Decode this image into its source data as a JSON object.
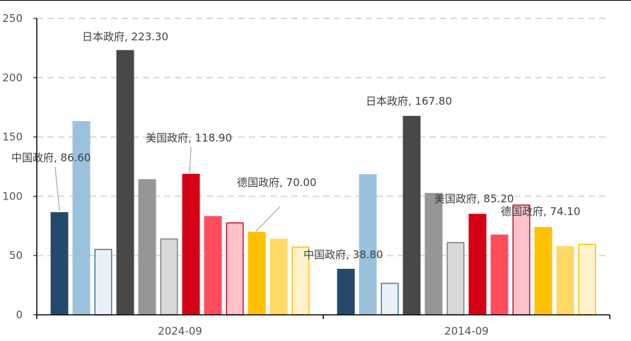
{
  "chart_data": {
    "type": "bar",
    "categories": [
      "2024-09",
      "2014-09"
    ],
    "series": [
      {
        "values": [
          86.6,
          38.8
        ],
        "color": "#234a6a"
      },
      {
        "values": [
          163.4,
          118.6
        ],
        "color": "#9bc1de"
      },
      {
        "values": [
          55.6,
          27.0
        ],
        "color": "#eaf1f8",
        "stroke": "#3f7aa6"
      },
      {
        "values": [
          223.3,
          167.8
        ],
        "color": "#484848"
      },
      {
        "values": [
          114.4,
          102.8
        ],
        "color": "#969696"
      },
      {
        "values": [
          64.4,
          61.4
        ],
        "color": "#d9d9d9",
        "stroke": "#808080"
      },
      {
        "values": [
          118.9,
          85.2
        ],
        "color": "#d50016"
      },
      {
        "values": [
          83.3,
          67.7
        ],
        "color": "#ff4d5e"
      },
      {
        "values": [
          78.0,
          93.0
        ],
        "color": "#ffc2ca",
        "stroke": "#c8102e"
      },
      {
        "values": [
          70.0,
          74.1
        ],
        "color": "#ffc000"
      },
      {
        "values": [
          64.2,
          58.0
        ],
        "color": "#ffd966"
      },
      {
        "values": [
          57.6,
          59.9
        ],
        "color": "#fff2cc",
        "stroke": "#ffc000"
      }
    ],
    "ylim": [
      0,
      250
    ],
    "yticks": [
      0,
      50,
      100,
      150,
      200,
      250
    ],
    "grid": true,
    "annotations": [
      {
        "text": "中国政府, 86.60",
        "category": 0,
        "series": 0,
        "leader": true
      },
      {
        "text": "日本政府, 223.30",
        "category": 0,
        "series": 3,
        "leader": false
      },
      {
        "text": "美国政府, 118.90",
        "category": 0,
        "series": 6,
        "leader": true
      },
      {
        "text": "德国政府, 70.00",
        "category": 0,
        "series": 9,
        "leader": true
      },
      {
        "text": "中国政府, 38.80",
        "category": 1,
        "series": 0,
        "leader": false
      },
      {
        "text": "日本政府, 167.80",
        "category": 1,
        "series": 3,
        "leader": false
      },
      {
        "text": "美国政府, 85.20",
        "category": 1,
        "series": 6,
        "leader": false
      },
      {
        "text": "德国政府, 74.10",
        "category": 1,
        "series": 9,
        "leader": false
      }
    ]
  }
}
